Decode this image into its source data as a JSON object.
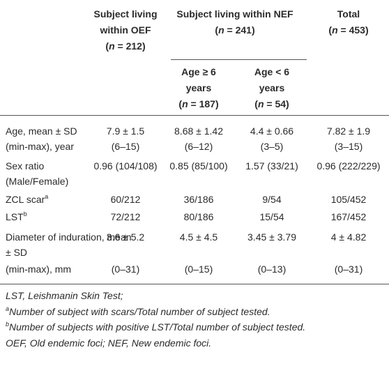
{
  "header": {
    "oef": {
      "lines": [
        "Subject living",
        "within OEF"
      ],
      "n": [
        "(",
        "n",
        " = 212)"
      ]
    },
    "nef": {
      "lines": [
        "Subject living within NEF"
      ],
      "n": [
        "(",
        "n",
        " = 241)"
      ]
    },
    "total": {
      "lines": [
        "Total"
      ],
      "n": [
        "(",
        "n",
        " = 453)"
      ]
    },
    "age_ge6": {
      "lines": [
        "Age ≥ 6",
        "years"
      ],
      "n": [
        "(",
        "n",
        " = 187)"
      ]
    },
    "age_lt6": {
      "lines": [
        "Age < 6",
        "years"
      ],
      "n": [
        "(",
        "n",
        " = 54)"
      ]
    }
  },
  "rows": [
    {
      "label": [
        "Age, mean ± SD",
        "(min-max), year"
      ],
      "cells": [
        [
          "7.9 ± 1.5",
          "(6–15)"
        ],
        [
          "8.68 ± 1.42",
          "(6–12)"
        ],
        [
          "4.4 ± 0.66",
          "(3–5)"
        ],
        [
          "7.82 ± 1.9",
          "(3–15)"
        ]
      ]
    },
    {
      "label": [
        "Sex ratio",
        "(Male/Female)"
      ],
      "cells": [
        [
          "0.96 (104/108)"
        ],
        [
          "0.85 (85/100)"
        ],
        [
          "1.57 (33/21)"
        ],
        [
          "0.96 (222/229)"
        ]
      ]
    },
    {
      "label": [
        "ZCL scar"
      ],
      "label_sup": "a",
      "cells": [
        [
          "60/212"
        ],
        [
          "36/186"
        ],
        [
          "9/54"
        ],
        [
          "105/452"
        ]
      ]
    },
    {
      "label": [
        "LST"
      ],
      "label_sup": "b",
      "cells": [
        [
          "72/212"
        ],
        [
          "80/186"
        ],
        [
          "15/54"
        ],
        [
          "167/452"
        ]
      ]
    },
    {
      "label": [
        "Diameter of induration, mean",
        "± SD"
      ],
      "cells": [
        [
          "3.6 ± 5.2"
        ],
        [
          "4.5 ± 4.5"
        ],
        [
          "3.45 ± 3.79"
        ],
        [
          "4 ± 4.82"
        ]
      ]
    },
    {
      "label": [
        "(min-max), mm"
      ],
      "cells": [
        [
          "(0–31)"
        ],
        [
          "(0–15)"
        ],
        [
          "(0–13)"
        ],
        [
          "(0–31)"
        ]
      ]
    }
  ],
  "footnotes": [
    {
      "text": "LST, Leishmanin Skin Test;"
    },
    {
      "mark": "a",
      "text": "Number of subject with scars/Total number of subject tested."
    },
    {
      "mark": "b",
      "text": "Number of subjects with positive LST/Total number of subject tested."
    },
    {
      "text": "OEF, Old endemic foci; NEF, New endemic foci."
    }
  ]
}
